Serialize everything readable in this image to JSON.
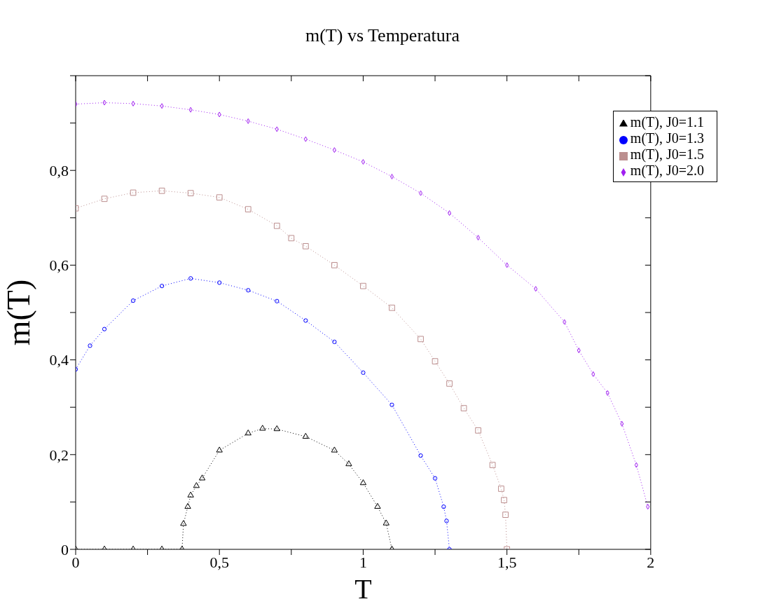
{
  "chart_data": {
    "type": "line",
    "title": "m(T) vs Temperatura",
    "xlabel": "T",
    "ylabel": "m(T)",
    "xlim": [
      0,
      2
    ],
    "ylim": [
      0,
      1
    ],
    "xticks": [
      0,
      {
        "value": 0.25,
        "label": null
      },
      {
        "value": 0.5,
        "label": "0,5"
      },
      {
        "value": 0.75,
        "label": null
      },
      1,
      {
        "value": 1.25,
        "label": null
      },
      {
        "value": 1.5,
        "label": "1,5"
      },
      {
        "value": 1.75,
        "label": null
      },
      2
    ],
    "yticks": [
      0,
      {
        "value": 0.1,
        "label": null
      },
      {
        "value": 0.2,
        "label": "0,2"
      },
      {
        "value": 0.3,
        "label": null
      },
      {
        "value": 0.4,
        "label": "0,4"
      },
      {
        "value": 0.5,
        "label": null
      },
      {
        "value": 0.6,
        "label": "0,6"
      },
      {
        "value": 0.7,
        "label": null
      },
      {
        "value": 0.8,
        "label": "0,8"
      },
      {
        "value": 0.9,
        "label": null
      },
      {
        "value": 1,
        "label": null
      }
    ],
    "grid": false,
    "legend": "top right",
    "line_style": "dotted",
    "series": [
      {
        "name": "m(T), J0=1.1",
        "color": "#000000",
        "marker": "triangle",
        "x": [
          0,
          0.1,
          0.2,
          0.3,
          0.37,
          0.375,
          0.39,
          0.4,
          0.42,
          0.44,
          0.5,
          0.6,
          0.65,
          0.7,
          0.8,
          0.9,
          0.95,
          1.0,
          1.05,
          1.08,
          1.1
        ],
        "values": [
          0,
          0,
          0,
          0,
          0,
          0.054,
          0.09,
          0.114,
          0.134,
          0.15,
          0.209,
          0.245,
          0.255,
          0.254,
          0.238,
          0.209,
          0.18,
          0.14,
          0.09,
          0.055,
          0
        ]
      },
      {
        "name": "m(T), J0=1.3",
        "color": "#0000ff",
        "marker": "circle",
        "x": [
          0,
          0.05,
          0.1,
          0.2,
          0.3,
          0.4,
          0.5,
          0.6,
          0.7,
          0.8,
          0.9,
          1.0,
          1.1,
          1.2,
          1.25,
          1.28,
          1.29,
          1.3
        ],
        "values": [
          0.38,
          0.43,
          0.465,
          0.525,
          0.556,
          0.572,
          0.563,
          0.547,
          0.524,
          0.483,
          0.438,
          0.373,
          0.305,
          0.198,
          0.15,
          0.09,
          0.06,
          0
        ]
      },
      {
        "name": "m(T), J0=1.5",
        "color": "#bc8f8f",
        "marker": "square",
        "x": [
          0,
          0.1,
          0.2,
          0.3,
          0.4,
          0.5,
          0.6,
          0.7,
          0.75,
          0.8,
          0.9,
          1.0,
          1.1,
          1.2,
          1.25,
          1.3,
          1.35,
          1.4,
          1.45,
          1.48,
          1.49,
          1.495,
          1.5
        ],
        "values": [
          0.72,
          0.74,
          0.753,
          0.757,
          0.752,
          0.743,
          0.718,
          0.683,
          0.657,
          0.64,
          0.6,
          0.556,
          0.51,
          0.444,
          0.397,
          0.35,
          0.298,
          0.251,
          0.178,
          0.128,
          0.104,
          0.073,
          0
        ]
      },
      {
        "name": "m(T), J0=2.0",
        "color": "#a020f0",
        "marker": "diamond",
        "x": [
          0,
          0.1,
          0.2,
          0.3,
          0.4,
          0.5,
          0.6,
          0.7,
          0.8,
          0.9,
          1.0,
          1.1,
          1.2,
          1.3,
          1.4,
          1.5,
          1.6,
          1.7,
          1.75,
          1.8,
          1.85,
          1.9,
          1.95,
          1.99
        ],
        "values": [
          0.94,
          0.943,
          0.941,
          0.936,
          0.928,
          0.918,
          0.904,
          0.887,
          0.866,
          0.843,
          0.818,
          0.787,
          0.752,
          0.71,
          0.658,
          0.6,
          0.55,
          0.48,
          0.42,
          0.37,
          0.33,
          0.265,
          0.178,
          0.09
        ]
      }
    ]
  }
}
